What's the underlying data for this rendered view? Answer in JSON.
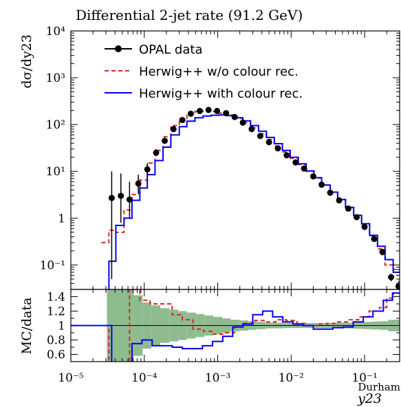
{
  "chart_data": [
    {
      "panel": "main",
      "type": "line",
      "title": "Differential 2-jet rate (91.2 GeV)",
      "ylabel": "dσ/dy23",
      "xscale": "log",
      "yscale": "log",
      "xlim": [
        1e-05,
        0.3
      ],
      "ylim": [
        0.03,
        10000
      ],
      "ytick_labels": [
        "10⁴",
        "10³",
        "10²",
        "10¹",
        "1",
        "10⁻¹"
      ],
      "legend_position": "top-left",
      "series": [
        {
          "name": "OPAL data",
          "style": "points-with-errors",
          "color": "#000000",
          "x": [
            3.6e-05,
            4.8e-05,
            6.3e-05,
            8.3e-05,
            0.00011,
            0.000145,
            0.00019,
            0.00025,
            0.00033,
            0.00043,
            0.00057,
            0.00075,
            0.00098,
            0.0013,
            0.0017,
            0.0022,
            0.0029,
            0.0038,
            0.005,
            0.0066,
            0.0087,
            0.0115,
            0.015,
            0.02,
            0.026,
            0.034,
            0.045,
            0.06,
            0.078,
            0.1,
            0.135,
            0.175,
            0.23,
            0.29
          ],
          "y": [
            2.7,
            3.0,
            2.5,
            5.5,
            11,
            25,
            45,
            80,
            125,
            170,
            195,
            205,
            195,
            175,
            145,
            110,
            80,
            57,
            42,
            31,
            22,
            15.5,
            11.5,
            7.8,
            5.2,
            3.5,
            2.4,
            1.6,
            1.05,
            0.65,
            0.36,
            0.19,
            0.055,
            0.035
          ],
          "yerr_low": [
            2.65,
            2.2,
            1.5,
            2.2,
            3.5,
            4,
            5,
            5,
            5,
            5,
            6,
            6,
            5,
            5,
            5,
            4,
            3,
            2,
            1.5,
            1,
            0.8,
            0.6,
            0.4,
            0.3,
            0.2,
            0.15,
            0.1,
            0.07,
            0.05,
            0.04,
            0.04,
            0.03,
            0.01,
            0.01
          ],
          "yerr_high": [
            7.3,
            6,
            3.5,
            3,
            4,
            5,
            5,
            5,
            5,
            5,
            6,
            6,
            5,
            5,
            5,
            4,
            3,
            2,
            1.5,
            1,
            0.8,
            0.6,
            0.4,
            0.3,
            0.2,
            0.15,
            0.1,
            0.07,
            0.05,
            0.04,
            0.04,
            0.03,
            0.01,
            0.01
          ]
        },
        {
          "name": "Herwig++ w/o colour rec.",
          "style": "step-dashed",
          "color": "#d62728",
          "edges": [
            2.6e-05,
            3.3e-05,
            4.1e-05,
            5.3e-05,
            6.8e-05,
            8.7e-05,
            0.00011,
            0.00014,
            0.00018,
            0.00023,
            0.0003,
            0.00038,
            0.00049,
            0.00063,
            0.00081,
            0.00104,
            0.00133,
            0.0017,
            0.0022,
            0.0028,
            0.0036,
            0.0046,
            0.0059,
            0.0076,
            0.0097,
            0.0125,
            0.016,
            0.0205,
            0.026,
            0.034,
            0.043,
            0.055,
            0.071,
            0.091,
            0.117,
            0.15,
            0.19,
            0.245,
            0.3
          ],
          "y": [
            0.3,
            0.55,
            0.5,
            1.5,
            3.2,
            6.5,
            15,
            28,
            55,
            95,
            135,
            170,
            190,
            195,
            190,
            175,
            160,
            135,
            110,
            85,
            64,
            48,
            35,
            26,
            19,
            14,
            10,
            7.2,
            5.1,
            3.6,
            2.5,
            1.7,
            1.15,
            0.75,
            0.42,
            0.22,
            0.1,
            0.08
          ]
        },
        {
          "name": "Herwig++ with colour rec.",
          "style": "step",
          "color": "#0000ee",
          "edges": [
            2.6e-05,
            3.3e-05,
            4.1e-05,
            5.3e-05,
            6.8e-05,
            8.7e-05,
            0.00011,
            0.00014,
            0.00018,
            0.00023,
            0.0003,
            0.00038,
            0.00049,
            0.00063,
            0.00081,
            0.00104,
            0.00133,
            0.0017,
            0.0022,
            0.0028,
            0.0036,
            0.0046,
            0.0059,
            0.0076,
            0.0097,
            0.0125,
            0.016,
            0.0205,
            0.026,
            0.034,
            0.043,
            0.055,
            0.071,
            0.091,
            0.117,
            0.15,
            0.19,
            0.245,
            0.3
          ],
          "y": [
            0.02,
            0.12,
            0.7,
            1.0,
            2.4,
            4.4,
            8.5,
            17,
            33,
            60,
            90,
            118,
            140,
            152,
            158,
            160,
            155,
            140,
            120,
            95,
            72,
            53,
            39,
            28,
            20,
            14.5,
            10.2,
            7.3,
            5.1,
            3.6,
            2.5,
            1.7,
            1.15,
            0.76,
            0.43,
            0.25,
            0.13,
            0.07
          ]
        }
      ]
    },
    {
      "panel": "ratio",
      "type": "line",
      "ylabel": "MC/data",
      "xlabel": "y23",
      "xlabel_superscript": "Durham",
      "xscale": "log",
      "xlim": [
        1e-05,
        0.3
      ],
      "ylim": [
        0.5,
        1.5
      ],
      "ytick_labels": [
        "1.4",
        "1.2",
        "1",
        "0.8",
        "0.6"
      ],
      "xtick_labels": [
        "10⁻⁵",
        "10⁻⁴",
        "10⁻³",
        "10⁻²",
        "10⁻¹"
      ],
      "band": {
        "name": "data uncertainty",
        "color": "#8fbc8f",
        "edges": [
          3.1e-05,
          4.2e-05,
          5.5e-05,
          7.2e-05,
          9.5e-05,
          0.000125,
          0.000165,
          0.00022,
          0.00029,
          0.00038,
          0.0005,
          0.00066,
          0.00087,
          0.00115,
          0.0015,
          0.002,
          0.0026,
          0.0034,
          0.0045,
          0.0059,
          0.0078,
          0.0102,
          0.0135,
          0.0178,
          0.0235,
          0.031,
          0.041,
          0.054,
          0.071,
          0.094,
          0.124,
          0.16,
          0.21,
          0.3
        ],
        "half_width": [
          0.5,
          0.5,
          0.5,
          0.42,
          0.32,
          0.28,
          0.24,
          0.22,
          0.2,
          0.18,
          0.16,
          0.14,
          0.12,
          0.1,
          0.08,
          0.07,
          0.06,
          0.05,
          0.04,
          0.04,
          0.035,
          0.035,
          0.035,
          0.035,
          0.035,
          0.035,
          0.04,
          0.04,
          0.045,
          0.05,
          0.055,
          0.06,
          0.08
        ]
      },
      "series": [
        {
          "name": "Herwig++ w/o colour rec.",
          "style": "step-dashed",
          "color": "#d62728",
          "edges": [
            1e-05,
            3.3e-05,
            4.6e-05,
            6.3e-05,
            8.7e-05,
            0.00012,
            0.00017,
            0.00024,
            0.00033,
            0.00046,
            0.00064,
            0.00088,
            0.0012,
            0.0017,
            0.0023,
            0.0032,
            0.0045,
            0.0062,
            0.0086,
            0.012,
            0.016,
            0.022,
            0.031,
            0.043,
            0.06,
            0.083,
            0.115,
            0.16,
            0.2,
            0.245,
            0.3
          ],
          "y": [
            1.0,
            0.35,
            0.45,
            1.5,
            1.35,
            1.3,
            1.3,
            1.15,
            1.08,
            0.95,
            0.92,
            0.88,
            0.9,
            0.98,
            1.03,
            1.07,
            1.05,
            1.08,
            1.07,
            1.03,
            1.0,
            1.02,
            1.03,
            1.05,
            1.08,
            1.12,
            1.2,
            1.25,
            1.38,
            1.45
          ]
        },
        {
          "name": "Herwig++ with colour rec.",
          "style": "step",
          "color": "#0000ee",
          "edges": [
            1e-05,
            3.6e-05,
            5e-05,
            6.8e-05,
            9.3e-05,
            0.000128,
            0.000175,
            0.00024,
            0.00033,
            0.00045,
            0.00062,
            0.00085,
            0.00117,
            0.0016,
            0.0022,
            0.003,
            0.0041,
            0.0056,
            0.0077,
            0.0106,
            0.0145,
            0.02,
            0.027,
            0.037,
            0.051,
            0.07,
            0.096,
            0.13,
            0.18,
            0.24,
            0.3
          ],
          "y": [
            1.0,
            0.35,
            0.4,
            0.75,
            0.8,
            0.72,
            0.72,
            0.7,
            0.68,
            0.68,
            0.72,
            0.78,
            0.85,
            0.98,
            1.02,
            1.15,
            1.2,
            1.12,
            1.05,
            1.02,
            1.0,
            0.95,
            0.95,
            0.97,
            0.98,
            1.05,
            1.12,
            1.2,
            1.35,
            1.45
          ]
        }
      ]
    }
  ]
}
